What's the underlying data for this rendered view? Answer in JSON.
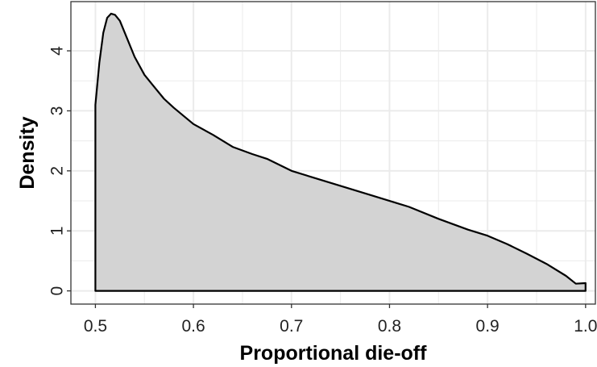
{
  "chart_data": {
    "type": "area",
    "title": "",
    "xlabel": "Proportional die-off",
    "ylabel": "Density",
    "xlim": [
      0.475,
      1.01
    ],
    "ylim": [
      -0.22,
      4.82
    ],
    "x_ticks": [
      0.5,
      0.6,
      0.7,
      0.8,
      0.9,
      1.0
    ],
    "x_tick_labels": [
      "0.5",
      "0.6",
      "0.7",
      "0.8",
      "0.9",
      "1.0"
    ],
    "y_ticks": [
      0,
      1,
      2,
      3,
      4
    ],
    "y_tick_labels": [
      "0",
      "1",
      "2",
      "3",
      "4"
    ],
    "grid": true,
    "legend": "none",
    "colors": {
      "fill": "#d3d3d3",
      "line": "#000000",
      "grid": "#ebebeb",
      "axis": "#333333"
    },
    "series": [
      {
        "x": [
          0.5,
          0.5,
          0.504,
          0.508,
          0.512,
          0.516,
          0.52,
          0.525,
          0.53,
          0.54,
          0.55,
          0.56,
          0.57,
          0.58,
          0.6,
          0.62,
          0.64,
          0.66,
          0.675,
          0.7,
          0.72,
          0.75,
          0.78,
          0.82,
          0.85,
          0.88,
          0.9,
          0.92,
          0.94,
          0.96,
          0.98,
          0.99,
          1.0,
          1.0
        ],
        "y": [
          0,
          3.1,
          3.8,
          4.3,
          4.55,
          4.62,
          4.6,
          4.5,
          4.3,
          3.9,
          3.6,
          3.4,
          3.2,
          3.05,
          2.78,
          2.6,
          2.4,
          2.28,
          2.2,
          2.0,
          1.9,
          1.75,
          1.6,
          1.4,
          1.2,
          1.02,
          0.92,
          0.78,
          0.62,
          0.45,
          0.25,
          0.12,
          0.13,
          0
        ]
      }
    ]
  }
}
